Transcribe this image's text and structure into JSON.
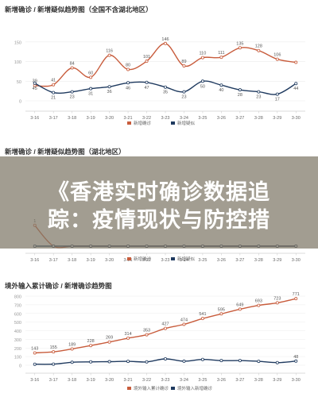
{
  "overlay": {
    "line1": "《香港实时确诊数据追",
    "line2": "踪：疫情现状与防控措"
  },
  "chart_data": [
    {
      "type": "line",
      "title": "新增确诊 / 新增疑似趋势图（全国不含湖北地区）",
      "categories": [
        "3-16",
        "3-17",
        "3-18",
        "3-19",
        "3-20",
        "3-21",
        "3-22",
        "3-23",
        "3-24",
        "3-25",
        "3-26",
        "3-27",
        "3-28",
        "3-29",
        "3-30"
      ],
      "ylim": [
        0,
        180
      ],
      "y_ticks": [
        "150",
        "100",
        "50",
        "0"
      ],
      "colors": [
        "#c85c3c",
        "#1f3a5f"
      ],
      "legend_position": "bottom",
      "series": [
        {
          "name": "新增确诊",
          "values": [
            39,
            41,
            84,
            60,
            116,
            80,
            101,
            146,
            89,
            110,
            111,
            135,
            128,
            106,
            98
          ],
          "labels": [
            "39",
            "41",
            "84",
            "60",
            "116",
            "80",
            "101",
            "146",
            "89",
            "110",
            "111",
            "135",
            "128",
            "106",
            ""
          ]
        },
        {
          "name": "新增疑似",
          "values": [
            45,
            21,
            23,
            31,
            36,
            46,
            47,
            35,
            23,
            50,
            40,
            28,
            23,
            17,
            44
          ],
          "labels": [
            "45",
            "21",
            "23",
            "31",
            "36",
            "46",
            "47",
            "35",
            "23",
            "50",
            "40",
            "28",
            "23",
            "17",
            "44"
          ]
        }
      ]
    },
    {
      "type": "line",
      "title": "新增确诊 / 新增疑似趋势图（湖北地区）",
      "categories": [
        "3-16",
        "3-17",
        "3-18",
        "3-19",
        "3-20",
        "3-21",
        "3-22",
        "3-23",
        "3-24",
        "3-25",
        "3-26",
        "3-27",
        "3-28",
        "3-29",
        "3-30"
      ],
      "ylim": [
        0,
        4
      ],
      "colors": [
        "#c85c3c",
        "#1f3a5f"
      ],
      "legend_position": "bottom",
      "series": [
        {
          "name": "新增确诊",
          "values": [
            1,
            0,
            0,
            0,
            0,
            0,
            0,
            0,
            0,
            0,
            0,
            0,
            0,
            0,
            0
          ],
          "labels": [
            "1",
            "",
            "",
            "",
            "",
            "",
            "",
            "",
            "",
            "",
            "",
            "",
            "",
            "",
            ""
          ]
        },
        {
          "name": "新增疑似",
          "values": [
            0,
            0,
            0,
            0,
            0,
            0,
            0,
            0,
            0,
            0,
            0,
            0,
            0,
            0,
            0
          ],
          "labels": [
            "",
            "",
            "",
            "",
            "",
            "",
            "",
            "",
            "",
            "",
            "",
            "",
            "",
            "",
            ""
          ]
        }
      ]
    },
    {
      "type": "line",
      "title": "境外输入累计确诊 / 新增确诊趋势图",
      "categories": [
        "3-16",
        "3-17",
        "3-18",
        "3-19",
        "3-20",
        "3-21",
        "3-22",
        "3-23",
        "3-24",
        "3-25",
        "3-26",
        "3-27",
        "3-28",
        "3-29",
        "3-30"
      ],
      "ylim": [
        0,
        800
      ],
      "y_ticks": [
        "800",
        "700",
        "600",
        "500",
        "400",
        "300",
        "200",
        "100",
        "0"
      ],
      "colors": [
        "#c85c3c",
        "#1f3a5f"
      ],
      "legend_position": "bottom",
      "series": [
        {
          "name": "境外输入累计确诊",
          "values": [
            143,
            155,
            189,
            228,
            269,
            314,
            353,
            427,
            474,
            541,
            595,
            649,
            693,
            723,
            771
          ],
          "labels": [
            "143",
            "155",
            "189",
            "228",
            "269",
            "314",
            "353",
            "427",
            "474",
            "541",
            "595",
            "649",
            "693",
            "723",
            "771"
          ]
        },
        {
          "name": "境外输入新增确诊",
          "values": [
            12,
            13,
            34,
            39,
            41,
            45,
            39,
            74,
            47,
            67,
            54,
            54,
            45,
            30,
            48
          ],
          "labels": [
            "",
            "",
            "",
            "",
            "",
            "",
            "",
            "",
            "",
            "",
            "",
            "",
            "",
            "",
            "48"
          ]
        }
      ]
    }
  ]
}
